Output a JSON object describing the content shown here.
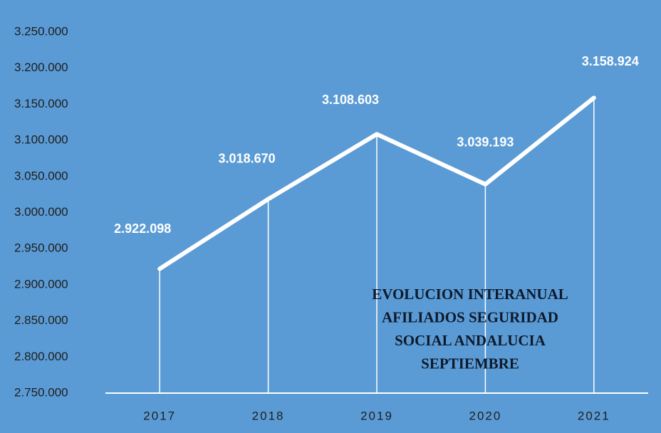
{
  "chart_data": {
    "type": "line",
    "title": [
      "EVOLUCION INTERANUAL",
      "AFILIADOS SEGURIDAD",
      "SOCIAL ANDALUCIA",
      "SEPTIEMBRE"
    ],
    "categories": [
      "2017",
      "2018",
      "2019",
      "2020",
      "2021"
    ],
    "values": [
      2922098,
      3018670,
      3108603,
      3039193,
      3158924
    ],
    "value_labels": [
      "2.922.098",
      "3.018.670",
      "3.108.603",
      "3.039.193",
      "3.158.924"
    ],
    "color": "#ffffff",
    "ylim": [
      2750000,
      3250000
    ],
    "yticks": [
      {
        "value": 2750000,
        "label": "2.750.000"
      },
      {
        "value": 2800000,
        "label": "2.800.000"
      },
      {
        "value": 2850000,
        "label": "2.850.000"
      },
      {
        "value": 2900000,
        "label": "2.900.000"
      },
      {
        "value": 2950000,
        "label": "2.950.000"
      },
      {
        "value": 3000000,
        "label": "3.000.000"
      },
      {
        "value": 3050000,
        "label": "3.050.000"
      },
      {
        "value": 3100000,
        "label": "3.100.000"
      },
      {
        "value": 3150000,
        "label": "3.150.000"
      },
      {
        "value": 3200000,
        "label": "3.200.000"
      },
      {
        "value": 3250000,
        "label": "3.250.000"
      }
    ],
    "drop_lines": true
  }
}
